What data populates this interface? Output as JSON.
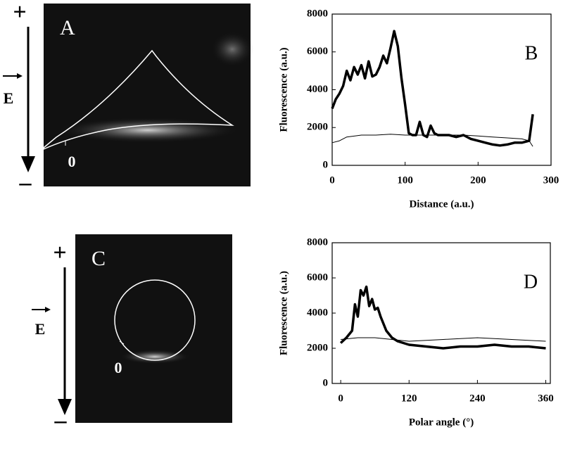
{
  "micrographs": [
    {
      "label": "A",
      "plus": "+",
      "minus": "–",
      "field": "E",
      "origin": "0"
    },
    {
      "label": "C",
      "plus": "+",
      "minus": "–",
      "field": "E",
      "origin": "0"
    }
  ],
  "chart_data": [
    {
      "type": "line",
      "panel_label": "B",
      "xlabel": "Distance (a.u.)",
      "ylabel": "Fluorescence (a.u.)",
      "xlim": [
        0,
        300
      ],
      "xticks": [
        0,
        100,
        200,
        300
      ],
      "ylim": [
        0,
        8000
      ],
      "yticks": [
        0,
        2000,
        4000,
        6000,
        8000
      ],
      "series": [
        {
          "color": "#000000",
          "width": 3.5,
          "x": [
            0,
            5,
            10,
            15,
            20,
            25,
            30,
            35,
            40,
            45,
            50,
            55,
            60,
            65,
            70,
            75,
            80,
            85,
            90,
            95,
            100,
            105,
            110,
            115,
            120,
            125,
            130,
            135,
            140,
            145,
            150,
            160,
            170,
            180,
            190,
            200,
            210,
            220,
            230,
            240,
            250,
            260,
            270,
            275
          ],
          "values": [
            3000,
            3500,
            3800,
            4200,
            5000,
            4500,
            5200,
            4800,
            5300,
            4600,
            5500,
            4700,
            4800,
            5200,
            5800,
            5400,
            6200,
            7100,
            6300,
            4600,
            3200,
            1700,
            1600,
            1600,
            2300,
            1600,
            1500,
            2100,
            1700,
            1600,
            1600,
            1600,
            1500,
            1600,
            1400,
            1300,
            1200,
            1100,
            1050,
            1100,
            1200,
            1200,
            1300,
            2700
          ]
        },
        {
          "color": "#000000",
          "width": 1,
          "x": [
            0,
            10,
            20,
            40,
            60,
            80,
            100,
            120,
            140,
            160,
            180,
            200,
            220,
            240,
            260,
            270,
            275
          ],
          "values": [
            1200,
            1300,
            1500,
            1600,
            1600,
            1650,
            1600,
            1600,
            1600,
            1600,
            1600,
            1550,
            1500,
            1450,
            1400,
            1300,
            1000
          ]
        }
      ]
    },
    {
      "type": "line",
      "panel_label": "D",
      "xlabel": "Polar angle (°)",
      "ylabel": "Fluorescence (a.u.)",
      "xlim": [
        -15,
        368
      ],
      "xticks": [
        0,
        120,
        240,
        360
      ],
      "ylim": [
        0,
        8000
      ],
      "yticks": [
        0,
        2000,
        4000,
        6000,
        8000
      ],
      "series": [
        {
          "color": "#000000",
          "width": 3.5,
          "x": [
            0,
            10,
            20,
            25,
            30,
            35,
            40,
            45,
            50,
            55,
            60,
            65,
            70,
            80,
            90,
            100,
            120,
            150,
            180,
            210,
            240,
            270,
            300,
            330,
            360
          ],
          "values": [
            2300,
            2600,
            3000,
            4500,
            3800,
            5300,
            5000,
            5500,
            4400,
            4800,
            4200,
            4300,
            3800,
            3000,
            2600,
            2400,
            2200,
            2100,
            2000,
            2100,
            2100,
            2200,
            2100,
            2100,
            2000
          ]
        },
        {
          "color": "#000000",
          "width": 1,
          "x": [
            0,
            30,
            60,
            90,
            120,
            180,
            240,
            300,
            360
          ],
          "values": [
            2500,
            2600,
            2600,
            2500,
            2400,
            2500,
            2600,
            2500,
            2400
          ]
        }
      ]
    }
  ]
}
